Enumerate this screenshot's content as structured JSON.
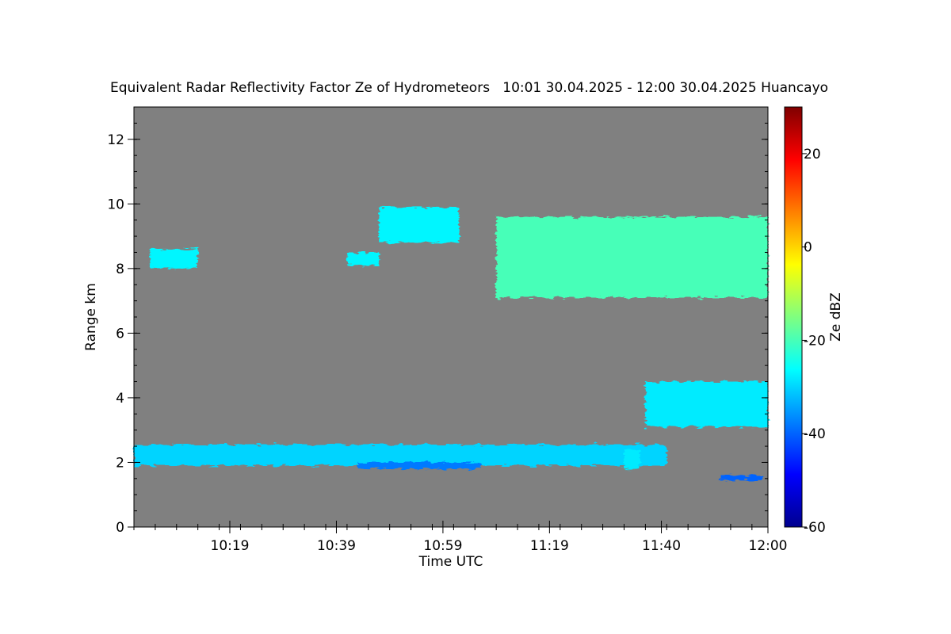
{
  "chart_data": {
    "type": "heatmap",
    "title": "Equivalent Radar Reflectivity Factor Ze of Hydrometeors   10:01 30.04.2025 - 12:00 30.04.2025 Huancayo",
    "xlabel": "Time UTC",
    "ylabel": "Range km",
    "colorbar_label": "Ze dBZ",
    "x_ticks": [
      "10:19",
      "10:39",
      "10:59",
      "11:19",
      "11:40",
      "12:00"
    ],
    "y_ticks": [
      "0",
      "2",
      "4",
      "6",
      "8",
      "10",
      "12"
    ],
    "colorbar_ticks": [
      "20",
      "0",
      "-20",
      "-40",
      "-60"
    ],
    "xlim": [
      "10:01",
      "12:00"
    ],
    "ylim": [
      0,
      13
    ],
    "clim": [
      -60,
      30
    ],
    "background_color": "#808080",
    "colormap": "jet",
    "echo_regions": [
      {
        "name": "low-cloud-layer",
        "t_start": "10:01",
        "t_end": "11:41",
        "range_bottom_km": 1.9,
        "range_top_km": 2.55,
        "ze_dbz": -30
      },
      {
        "name": "low-cloud-fragments",
        "t_start": "10:43",
        "t_end": "11:06",
        "range_bottom_km": 1.8,
        "range_top_km": 2.0,
        "ze_dbz": -38
      },
      {
        "name": "low-cloud-drop",
        "t_start": "11:33",
        "t_end": "11:36",
        "range_bottom_km": 1.8,
        "range_top_km": 2.4,
        "ze_dbz": -28
      },
      {
        "name": "low-patch",
        "t_start": "11:51",
        "t_end": "11:59",
        "range_bottom_km": 1.45,
        "range_top_km": 1.6,
        "ze_dbz": -40
      },
      {
        "name": "upper-cloud-early",
        "t_start": "10:04",
        "t_end": "10:13",
        "range_bottom_km": 8.0,
        "range_top_km": 8.6,
        "ze_dbz": -27
      },
      {
        "name": "upper-cloud-small",
        "t_start": "10:41",
        "t_end": "10:47",
        "range_bottom_km": 8.1,
        "range_top_km": 8.5,
        "ze_dbz": -27
      },
      {
        "name": "upper-cloud-streak",
        "t_start": "10:47",
        "t_end": "11:02",
        "range_bottom_km": 8.8,
        "range_top_km": 9.9,
        "ze_dbz": -27
      },
      {
        "name": "upper-cloud-main",
        "t_start": "11:09",
        "t_end": "12:00",
        "range_bottom_km": 7.1,
        "range_top_km": 9.6,
        "ze_dbz": -20
      },
      {
        "name": "mid-cloud-layer",
        "t_start": "11:37",
        "t_end": "12:00",
        "range_bottom_km": 3.1,
        "range_top_km": 4.5,
        "ze_dbz": -28
      }
    ]
  }
}
